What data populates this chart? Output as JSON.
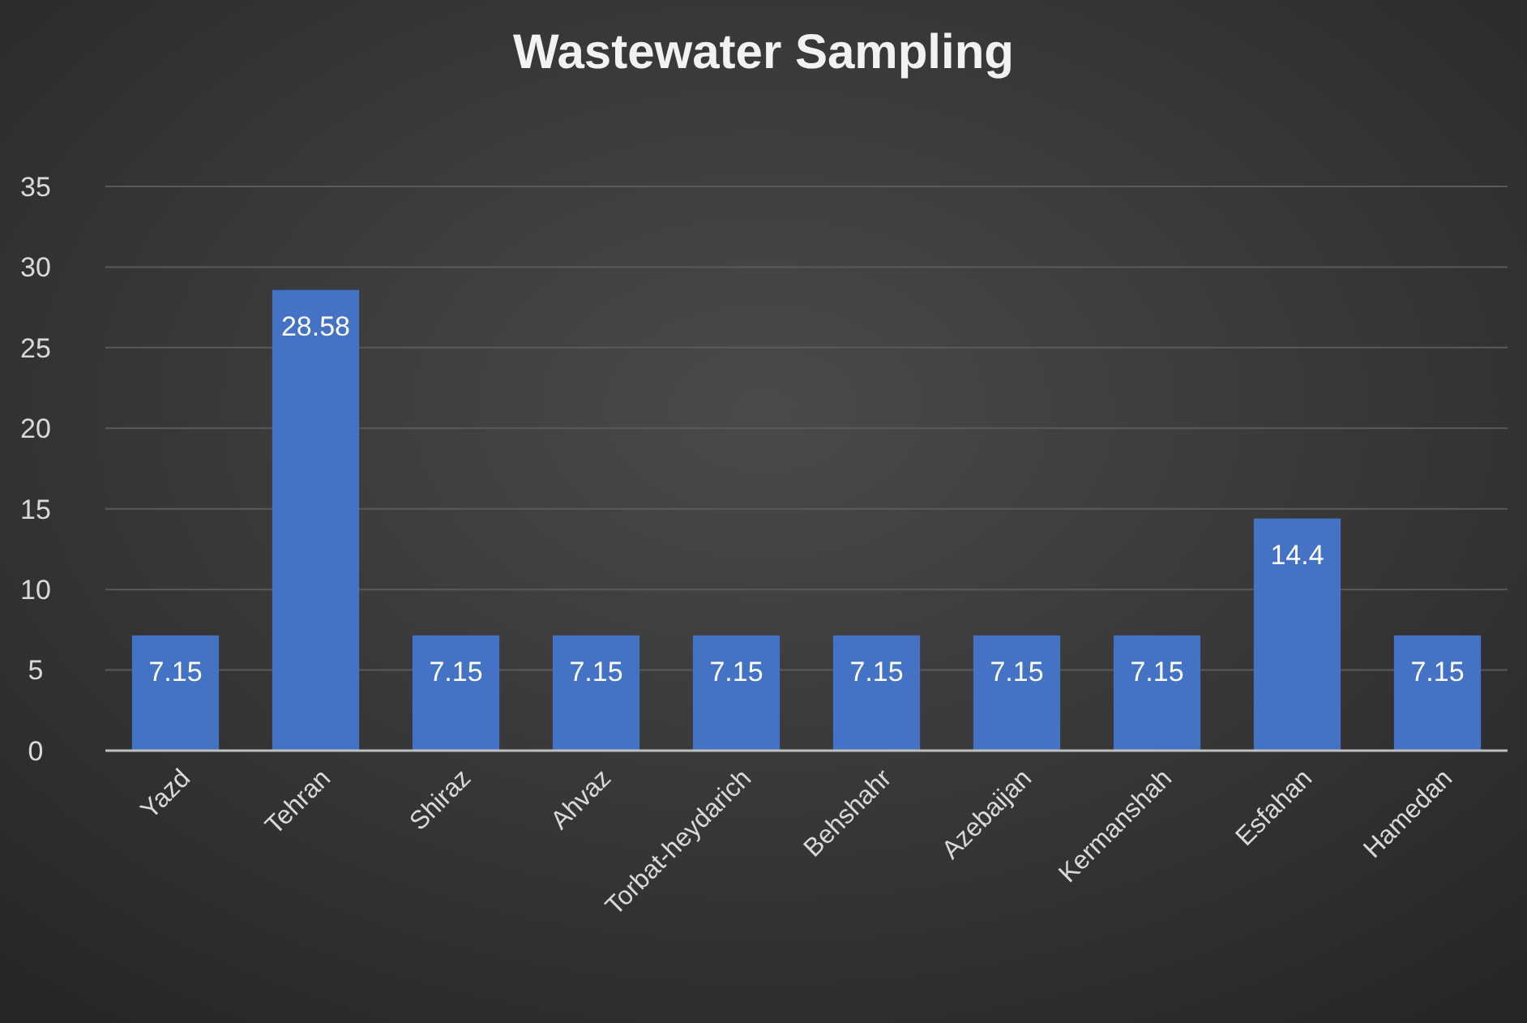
{
  "chart_data": {
    "type": "bar",
    "title": "Wastewater Sampling",
    "categories": [
      "Yazd",
      "Tehran",
      "Shiraz",
      "Ahvaz",
      "Torbat-heydarich",
      "Behshahr",
      "Azebaijan",
      "Kermanshah",
      "Esfahan",
      "Hamedan"
    ],
    "values": [
      7.15,
      28.58,
      7.15,
      7.15,
      7.15,
      7.15,
      7.15,
      7.15,
      14.4,
      7.15
    ],
    "color": "#4472c4",
    "ylim": [
      0,
      35
    ],
    "yticks": [
      0,
      5,
      10,
      15,
      20,
      25,
      30,
      35
    ],
    "grid": "y",
    "data_labels": true
  }
}
